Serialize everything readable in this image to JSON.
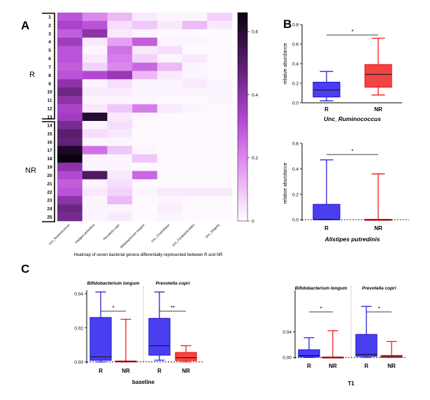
{
  "panels": {
    "A": "A",
    "B": "B",
    "C": "C"
  },
  "colors": {
    "R": "#2a1fd6",
    "NR": "#ee1c1c",
    "R_fill": "#4a3ff0",
    "NR_fill": "#f04545"
  },
  "heatmap": {
    "title": "Heatmap of seven bacterial genera differentially represented between R and NR",
    "columns": [
      "Unc_Ruminococcus",
      "Alistipes putredinis",
      "Prevotella copri",
      "Bifidobacterium longum",
      "Unc_Clostridiales",
      "Unc_Parabacteroides",
      "Unc_Shigella"
    ],
    "rows": [
      "1",
      "2",
      "3",
      "4",
      "5",
      "6",
      "7",
      "8",
      "9",
      "10",
      "11",
      "12",
      "13",
      "14",
      "15",
      "16",
      "17",
      "18",
      "19",
      "20",
      "21",
      "22",
      "23",
      "24",
      "25"
    ],
    "groups": [
      {
        "label": "R"
      },
      {
        "label": "NR"
      }
    ],
    "colorbar_ticks": [
      "0.6",
      "0.4",
      "0.2",
      "0"
    ],
    "colorbar_range": [
      0,
      0.66
    ]
  },
  "chart_data": [
    {
      "type": "heatmap",
      "title": "Heatmap of seven bacterial genera differentially represented between R and NR",
      "x": [
        "Unc_Ruminococcus",
        "Alistipes putredinis",
        "Prevotella copri",
        "Bifidobacterium longum",
        "Unc_Clostridiales",
        "Unc_Parabacteroides",
        "Unc_Shigella"
      ],
      "y": [
        "1",
        "2",
        "3",
        "4",
        "5",
        "6",
        "7",
        "8",
        "9",
        "10",
        "11",
        "12",
        "13",
        "14",
        "15",
        "16",
        "17",
        "18",
        "19",
        "20",
        "21",
        "22",
        "23",
        "24",
        "25"
      ],
      "values": [
        [
          0.3,
          0.2,
          0.12,
          0.04,
          0.02,
          0.02,
          0.08
        ],
        [
          0.34,
          0.3,
          0.06,
          0.1,
          0.04,
          0.12,
          0.04
        ],
        [
          0.28,
          0.4,
          0.04,
          0.02,
          0.01,
          0.01,
          0.01
        ],
        [
          0.36,
          0.04,
          0.16,
          0.28,
          0.02,
          0.02,
          0.01
        ],
        [
          0.3,
          0.02,
          0.24,
          0.04,
          0.06,
          0.01,
          0.01
        ],
        [
          0.3,
          0.04,
          0.22,
          0.08,
          0.02,
          0.04,
          0.01
        ],
        [
          0.28,
          0.08,
          0.2,
          0.26,
          0.12,
          0.02,
          0.01
        ],
        [
          0.3,
          0.32,
          0.38,
          0.12,
          0.04,
          0.02,
          0.01
        ],
        [
          0.4,
          0.02,
          0.06,
          0.02,
          0.02,
          0.04,
          0.02
        ],
        [
          0.46,
          0.04,
          0.04,
          0.02,
          0.02,
          0.02,
          0.02
        ],
        [
          0.4,
          0.02,
          0.02,
          0.02,
          0.01,
          0.01,
          0.02
        ],
        [
          0.34,
          0.04,
          0.1,
          0.22,
          0.04,
          0.02,
          0.01
        ],
        [
          0.36,
          0.6,
          0.04,
          0.02,
          0.01,
          0.01,
          0.01
        ],
        [
          0.44,
          0.02,
          0.06,
          0.01,
          0.01,
          0.01,
          0.01
        ],
        [
          0.5,
          0.06,
          0.04,
          0.01,
          0.01,
          0.01,
          0.01
        ],
        [
          0.48,
          0.02,
          0.02,
          0.01,
          0.01,
          0.01,
          0.01
        ],
        [
          0.62,
          0.24,
          0.1,
          0.02,
          0.01,
          0.01,
          0.01
        ],
        [
          0.66,
          0.02,
          0.02,
          0.1,
          0.01,
          0.01,
          0.01
        ],
        [
          0.4,
          0.02,
          0.02,
          0.01,
          0.01,
          0.01,
          0.01
        ],
        [
          0.32,
          0.52,
          0.04,
          0.26,
          0.01,
          0.01,
          0.01
        ],
        [
          0.28,
          0.02,
          0.06,
          0.01,
          0.01,
          0.01,
          0.01
        ],
        [
          0.3,
          0.04,
          0.08,
          0.02,
          0.04,
          0.04,
          0.04
        ],
        [
          0.4,
          0.02,
          0.12,
          0.01,
          0.02,
          0.01,
          0.01
        ],
        [
          0.46,
          0.02,
          0.02,
          0.01,
          0.03,
          0.01,
          0.01
        ],
        [
          0.44,
          0.02,
          0.04,
          0.01,
          0.02,
          0.01,
          0.01
        ]
      ],
      "colorbar": {
        "min": 0,
        "max": 0.66,
        "ticks": [
          0,
          0.2,
          0.4,
          0.6
        ]
      }
    },
    {
      "type": "box",
      "panel": "B-top",
      "title": "Unc_Ruminococcus",
      "ylabel": "relative abundance",
      "ylim": [
        0,
        0.8
      ],
      "yticks": [
        "0.0",
        "0.2",
        "0.4",
        "0.6",
        "0.8"
      ],
      "categories": [
        "R",
        "NR"
      ],
      "boxes": [
        {
          "name": "R",
          "min": 0.02,
          "q1": 0.06,
          "median": 0.13,
          "q3": 0.21,
          "max": 0.32
        },
        {
          "name": "NR",
          "min": 0.08,
          "q1": 0.16,
          "median": 0.29,
          "q3": 0.39,
          "max": 0.66
        }
      ],
      "significance": "*"
    },
    {
      "type": "box",
      "panel": "B-bottom",
      "title": "Alistipes putredinis",
      "ylabel": "relative abundance",
      "ylim": [
        -0.01,
        0.6
      ],
      "yticks": [
        "0.0",
        "0.2",
        "0.4",
        "0.6"
      ],
      "categories": [
        "R",
        "NR"
      ],
      "boxes": [
        {
          "name": "R",
          "min": 0.0,
          "q1": 0.0,
          "median": 0.002,
          "q3": 0.12,
          "max": 0.47
        },
        {
          "name": "NR",
          "min": 0.0,
          "q1": 0.0,
          "median": 0.0,
          "q3": 0.002,
          "max": 0.36
        }
      ],
      "significance": "*"
    },
    {
      "type": "box",
      "panel": "C-baseline",
      "xlabel": "baseline",
      "ylim": [
        -0.001,
        0.04
      ],
      "yticks": [
        "0.00",
        "0.02",
        "0.04"
      ],
      "groups": [
        {
          "title": "Bifidobacterium longum",
          "significance": "*",
          "boxes": [
            {
              "name": "R",
              "min": 0.0,
              "q1": 0.001,
              "median": 0.003,
              "q3": 0.026,
              "max": 0.041
            },
            {
              "name": "NR",
              "min": 0.0,
              "q1": 0.0,
              "median": 0.0003,
              "q3": 0.0005,
              "max": 0.025
            }
          ]
        },
        {
          "title": "Prevotella copri",
          "significance": "**",
          "boxes": [
            {
              "name": "R",
              "min": 0.001,
              "q1": 0.004,
              "median": 0.0095,
              "q3": 0.0255,
              "max": 0.041
            },
            {
              "name": "NR",
              "min": 0.0,
              "q1": 0.0008,
              "median": 0.0025,
              "q3": 0.0055,
              "max": 0.0095
            }
          ]
        }
      ]
    },
    {
      "type": "box",
      "panel": "C-T1",
      "xlabel": "T1",
      "ylim": [
        -0.002,
        0.1
      ],
      "yticks": [
        "0.00",
        "0.04"
      ],
      "groups": [
        {
          "title": "Bifidobacterium longum",
          "significance": "*",
          "boxes": [
            {
              "name": "R",
              "min": 0.0,
              "q1": 0.001,
              "median": 0.003,
              "q3": 0.012,
              "max": 0.031
            },
            {
              "name": "NR",
              "min": 0.0,
              "q1": 0.0,
              "median": 0.0003,
              "q3": 0.0005,
              "max": 0.042
            }
          ]
        },
        {
          "title": "Prevotella copri",
          "significance": "*",
          "boxes": [
            {
              "name": "R",
              "min": 0.0,
              "q1": 0.002,
              "median": 0.005,
              "q3": 0.036,
              "max": 0.08
            },
            {
              "name": "NR",
              "min": 0.0,
              "q1": 0.0,
              "median": 0.002,
              "q3": 0.003,
              "max": 0.025
            }
          ]
        }
      ]
    }
  ],
  "boxplot_labels": {
    "B_top": {
      "ylabel": "relative abundance",
      "title": "Unc_Ruminococcus",
      "yticks": [
        "0.0",
        "0.2",
        "0.4",
        "0.6",
        "0.8"
      ],
      "cats": [
        "R",
        "NR"
      ],
      "sig": "*"
    },
    "B_bottom": {
      "ylabel": "relative abundance",
      "title": "Alistipes putredinis",
      "yticks": [
        "0.0",
        "0.2",
        "0.4",
        "0.6"
      ],
      "cats": [
        "R",
        "NR"
      ],
      "sig": "*"
    },
    "C_base": {
      "xlabel": "baseline",
      "yticks": [
        "0.00",
        "0.02",
        "0.04"
      ],
      "titles": [
        "Bifidobacterium longum",
        "Prevotella copri"
      ],
      "cats": [
        "R",
        "NR"
      ],
      "sigs": [
        "*",
        "**"
      ]
    },
    "C_t1": {
      "xlabel": "T1",
      "yticks": [
        "0.00",
        "0.04"
      ],
      "titles": [
        "Bifidobacterium longum",
        "Prevotella copri"
      ],
      "cats": [
        "R",
        "NR"
      ],
      "sigs": [
        "*",
        "*"
      ]
    }
  }
}
